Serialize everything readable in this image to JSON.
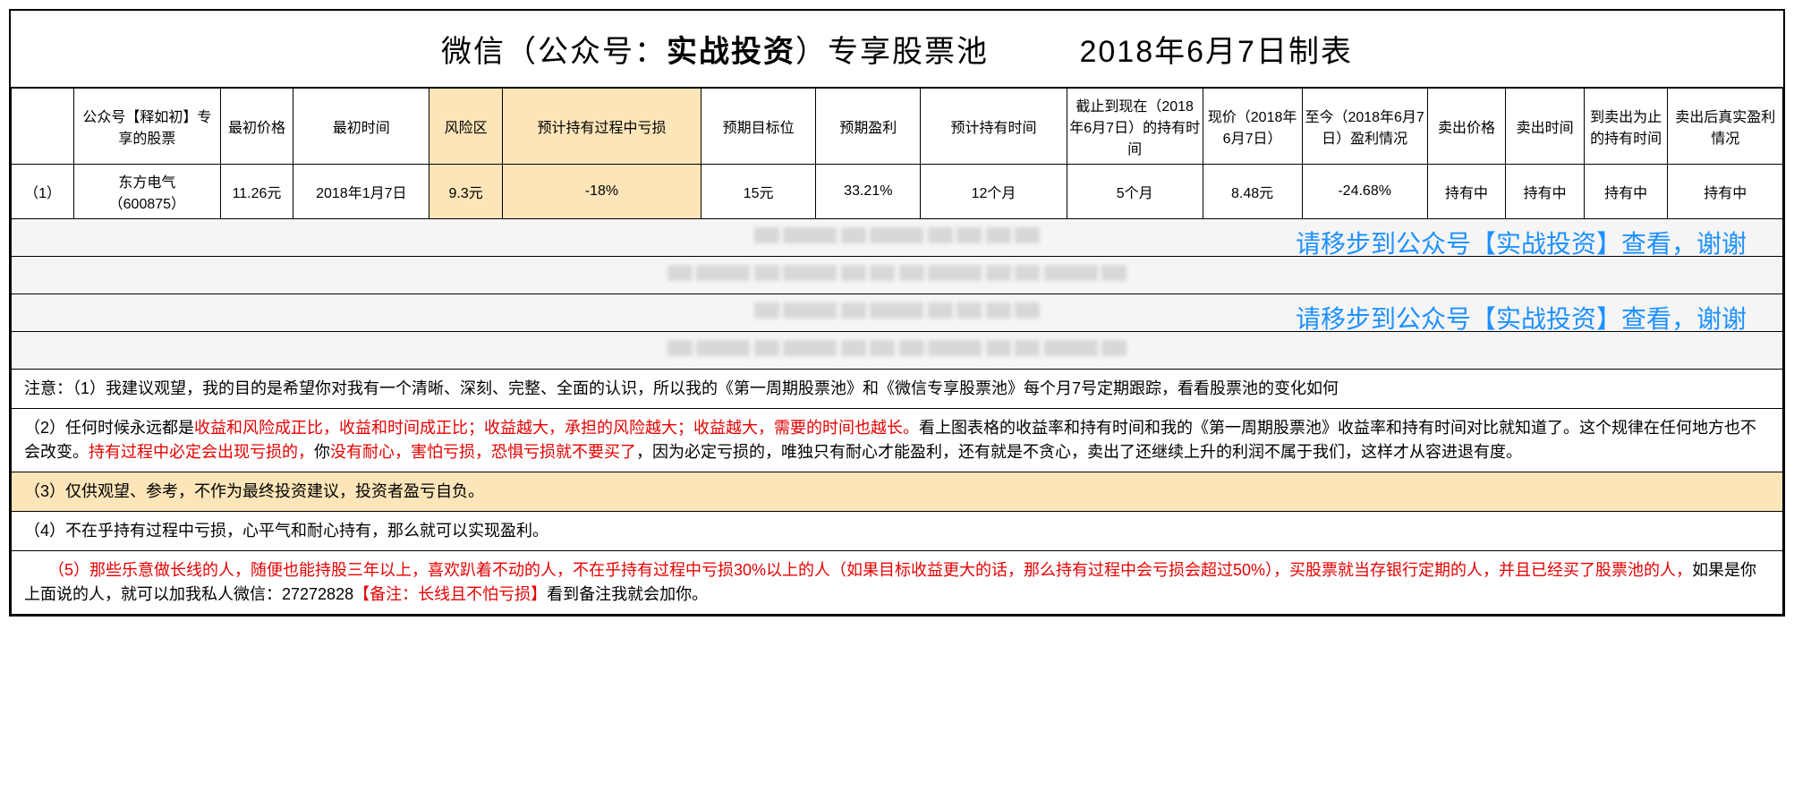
{
  "title": {
    "prefix": "微信（公众号：",
    "bold": "实战投资",
    "suffix": "）专享股票池",
    "date": "2018年6月7日制表"
  },
  "headers": [
    "",
    "公众号【释如初】专享的股票",
    "最初价格",
    "最初时间",
    "风险区",
    "预计持有过程中亏损",
    "预期目标位",
    "预期盈利",
    "预计持有时间",
    "截止到现在（2018年6月7日）的持有时间",
    "现价（2018年6月7日）",
    "至今（2018年6月7日）盈利情况",
    "卖出价格",
    "卖出时间",
    "到卖出为止的持有时间",
    "卖出后真实盈利情况"
  ],
  "row1": {
    "idx": "（1）",
    "stock_name": "东方电气",
    "stock_code": "（600875）",
    "init_price": "11.26元",
    "init_time": "2018年1月7日",
    "risk": "9.3元",
    "loss": "-18%",
    "target": "15元",
    "exp_profit": "33.21%",
    "hold_time": "12个月",
    "up_to_now": "5个月",
    "cur_price": "8.48元",
    "cur_profit": "-24.68%",
    "sell_price": "持有中",
    "sell_time": "持有中",
    "sell_hold": "持有中",
    "real_profit": "持有中"
  },
  "overlay": "请移步到公众号【实战投资】查看，谢谢",
  "notes": {
    "n1": "注意：（1）我建议观望，我的目的是希望你对我有一个清晰、深刻、完整、全面的认识，所以我的《第一周期股票池》和《微信专享股票池》每个月7号定期跟踪，看看股票池的变化如何",
    "n2a": "（2）任何时候永远都是",
    "n2b": "收益和风险成正比，收益和时间成正比；收益越大，承担的风险越大；收益越大，需要的时间也越长。",
    "n2c": "看上图表格的收益率和持有时间和我的《第一周期股票池》收益率和持有时间对比就知道了。这个规律在任何地方也不会改变。",
    "n2d": "持有过程中必定会出现亏损的，",
    "n2e": "你",
    "n2f": "没有耐心，害怕亏损，恐惧亏损就不要买了",
    "n2g": "，因为必定亏损的，唯独只有耐心才能盈利，还有就是不贪心，卖出了还继续上升的利润不属于我们，这样才从容进退有度。",
    "n3": "（3）仅供观望、参考，不作为最终投资建议，投资者盈亏自负。",
    "n4": "（4）不在乎持有过程中亏损，心平气和耐心持有，那么就可以实现盈利。",
    "n5a": "　　（5）那些乐意做长线的人，随便也能持股三年以上，喜欢趴着不动的人，不在乎持有过程中亏损30%以上的人（如果目标收益更大的话，那么持有过程中会亏损会超过50%），买股票就当存银行定期的人，并且已经买了股票池的人，",
    "n5b": "如果是你上面说的人，就可以加我私人微信：27272828",
    "n5c": "【备注：长线且不怕亏损】",
    "n5d": "看到备注我就会加你。"
  }
}
